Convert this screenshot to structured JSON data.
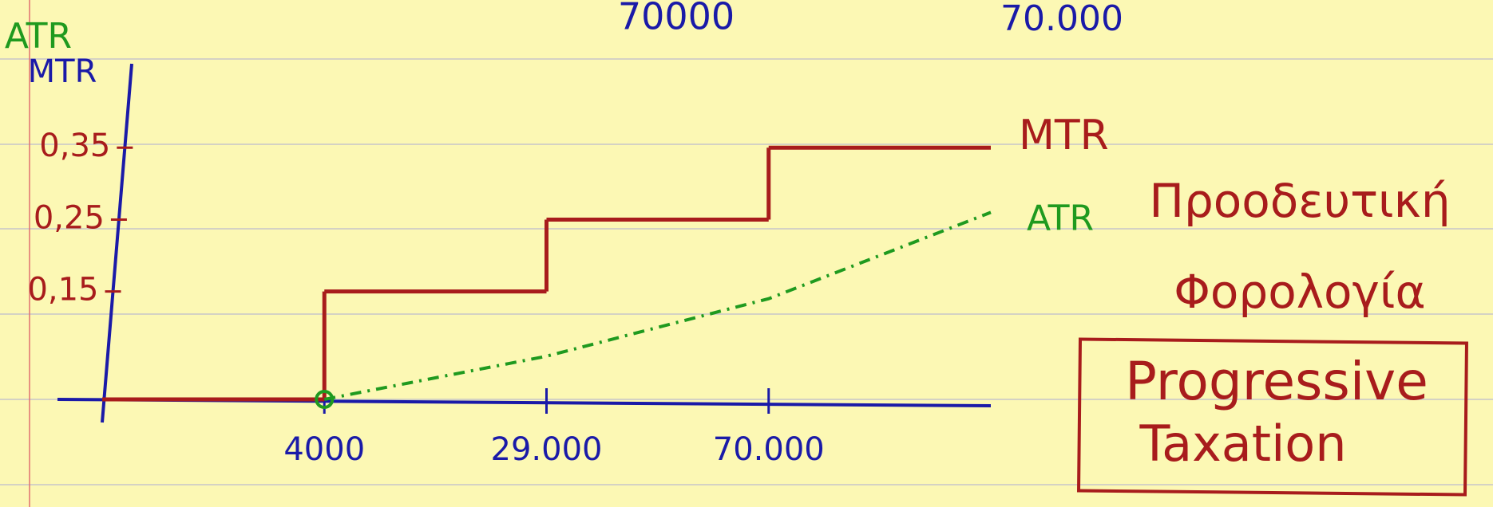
{
  "chart_data": {
    "type": "step",
    "categories": [
      null,
      "4000",
      "29.000",
      "70.000",
      null
    ],
    "series": [
      {
        "name": "MTR",
        "color": "#a81c1c",
        "values": [
          0,
          0.15,
          0.25,
          0.35,
          0.35
        ]
      },
      {
        "name": "ATR",
        "color": "#1f9a1f",
        "values": [
          null,
          0,
          0.06,
          0.14,
          0.26
        ]
      }
    ],
    "ylim": [
      0,
      0.45
    ],
    "yticks": [
      {
        "value": 0.15,
        "label": "0,15"
      },
      {
        "value": 0.25,
        "label": "0,25"
      },
      {
        "value": 0.35,
        "label": "0,35"
      }
    ],
    "annotations": [
      "70000",
      "70.000",
      "Προοδευτική",
      "Φορολογία",
      "Progressive",
      "Taxation"
    ]
  }
}
